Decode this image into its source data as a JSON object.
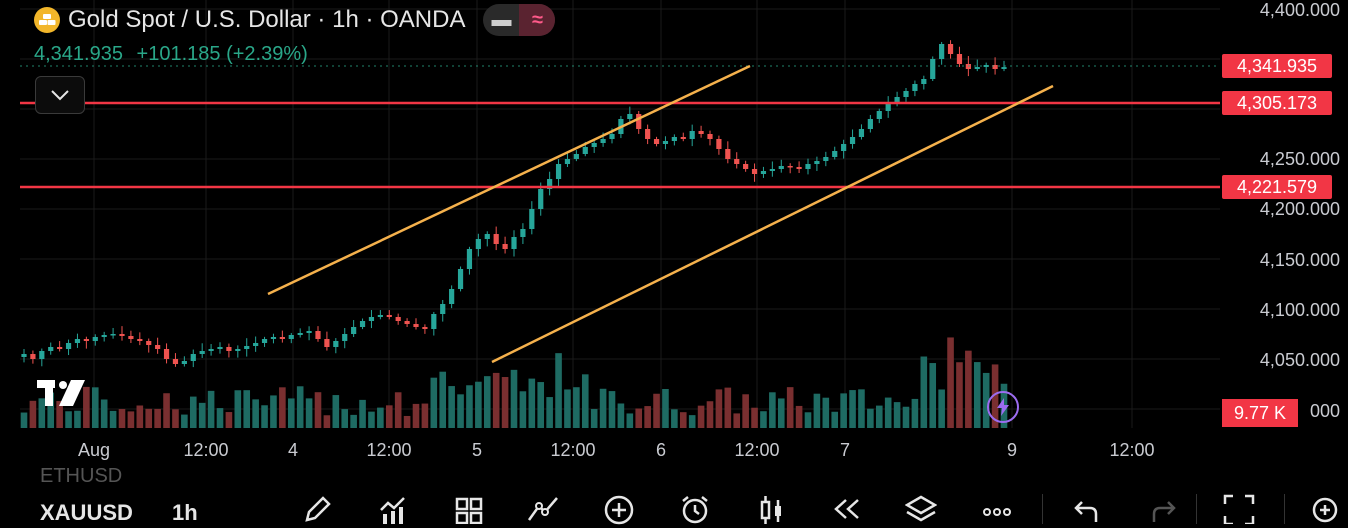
{
  "header": {
    "title": "Gold Spot / U.S. Dollar · 1h · OANDA",
    "price": "4,341.935",
    "change": "+101.185 (+2.39%)",
    "symbol_icon": "gold-bars-icon",
    "minus_icon": "minus-icon",
    "wave_icon": "approx-icon"
  },
  "y_axis": {
    "labels": [
      "4,400.000",
      "4,250.000",
      "4,200.000",
      "4,150.000",
      "4,100.000",
      "4,050.000",
      "000"
    ]
  },
  "price_tags": {
    "current": "4,341.935",
    "line1": "4,305.173",
    "line2": "4,221.579"
  },
  "volume_tag": "9.77 K",
  "x_axis": {
    "labels": [
      "Aug",
      "12:00",
      "4",
      "12:00",
      "5",
      "12:00",
      "6",
      "12:00",
      "7",
      "9",
      "12:00"
    ]
  },
  "bottom": {
    "prev_symbol": "ETHUSD",
    "symbol": "XAUUSD",
    "interval": "1h",
    "tools": [
      "pencil-icon",
      "indicators-icon",
      "grid-icon",
      "drawing-tools-icon",
      "add-icon",
      "alarm-icon",
      "candles-icon",
      "replay-icon",
      "layers-icon",
      "more-icon",
      "undo-icon",
      "redo-icon",
      "fullscreen-icon",
      "zoom-in-icon"
    ]
  },
  "colors": {
    "up": "#26a69a",
    "down": "#ef5350",
    "line": "#f23645",
    "trend": "#f5b14c",
    "price_text": "#2aa789"
  },
  "logo": "TradingView",
  "chart_data": {
    "type": "candlestick",
    "symbol": "XAUUSD",
    "interval": "1h",
    "x": [
      "Aug",
      "12:00",
      "4",
      "12:00",
      "5",
      "12:00",
      "6",
      "12:00",
      "7",
      "9",
      "12:00"
    ],
    "ylim": [
      4000,
      4400
    ],
    "horizontal_lines": [
      4305.173,
      4221.579
    ],
    "last_price": 4341.935,
    "close_series": [
      4055,
      4050,
      4058,
      4062,
      4060,
      4066,
      4070,
      4068,
      4072,
      4074,
      4075,
      4073,
      4070,
      4068,
      4064,
      4060,
      4050,
      4045,
      4048,
      4055,
      4058,
      4060,
      4062,
      4058,
      4060,
      4063,
      4066,
      4070,
      4072,
      4070,
      4074,
      4076,
      4078,
      4070,
      4062,
      4068,
      4075,
      4082,
      4088,
      4092,
      4094,
      4092,
      4088,
      4085,
      4082,
      4080,
      4095,
      4105,
      4120,
      4140,
      4160,
      4170,
      4175,
      4165,
      4160,
      4172,
      4180,
      4200,
      4220,
      4230,
      4245,
      4250,
      4255,
      4262,
      4266,
      4270,
      4275,
      4290,
      4295,
      4280,
      4270,
      4265,
      4268,
      4272,
      4270,
      4278,
      4275,
      4270,
      4260,
      4250,
      4245,
      4240,
      4235,
      4238,
      4240,
      4243,
      4242,
      4240,
      4245,
      4248,
      4252,
      4258,
      4265,
      4272,
      4280,
      4290,
      4298,
      4305,
      4312,
      4318,
      4325,
      4330,
      4350,
      4365,
      4355,
      4345,
      4340,
      4342,
      4344,
      4340,
      4341.935
    ],
    "volume": "9.77 K",
    "trendlines": [
      {
        "from": [
          "3 Aug 18:00",
          4110
        ],
        "to": [
          "6 Aug 06:00",
          4340
        ]
      },
      {
        "from": [
          "5 Aug 00:00",
          4045
        ],
        "to": [
          "9 Aug 06:00",
          4330
        ]
      }
    ]
  }
}
